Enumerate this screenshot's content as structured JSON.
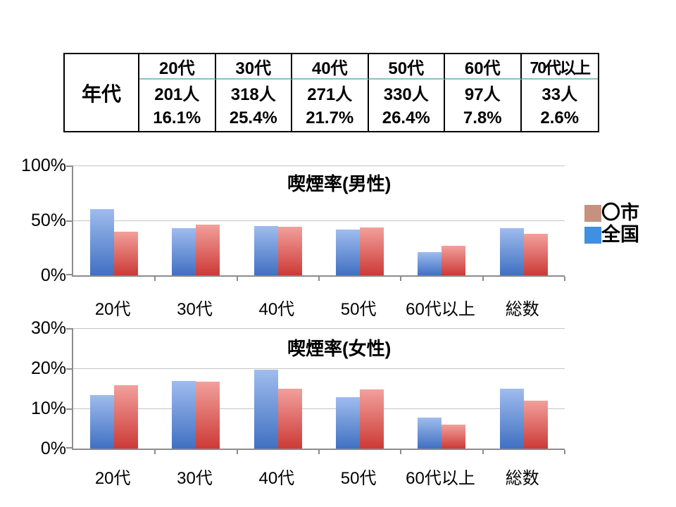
{
  "slide": {
    "table": {
      "row_header": "年代",
      "columns": [
        "20代",
        "30代",
        "40代",
        "50代",
        "60代",
        "70代以上"
      ],
      "counts": [
        "201人",
        "318人",
        "271人",
        "330人",
        "97人",
        "33人"
      ],
      "percents": [
        "16.1%",
        "25.4%",
        "21.7%",
        "26.4%",
        "7.8%",
        "2.6%"
      ],
      "header_underline_color": "#8fc0bd"
    },
    "legend": {
      "items": [
        {
          "label": "〇市",
          "color": "#c79180"
        },
        {
          "label": "全国",
          "color": "#3f90e2"
        }
      ]
    },
    "colors": {
      "grid": "#c5c5c5",
      "axis": "#8c8c8c",
      "national_bar_top": "#9fbcee",
      "national_bar_bottom": "#4070c2",
      "city_bar_top": "#f2a09c",
      "city_bar_bottom": "#cc3a36"
    }
  },
  "chart_data": [
    {
      "type": "bar",
      "title": "喫煙率(男性)",
      "categories": [
        "20代",
        "30代",
        "40代",
        "50代",
        "60代以上",
        "総数"
      ],
      "series": [
        {
          "name": "全国",
          "color_top": "#9fbcee",
          "color_bottom": "#4070c2",
          "values": [
            60,
            43,
            45,
            41.5,
            21,
            43
          ]
        },
        {
          "name": "〇市",
          "color_top": "#f2a09c",
          "color_bottom": "#cc3a36",
          "values": [
            40,
            46.5,
            44,
            43.5,
            27,
            38
          ]
        }
      ],
      "ylim": [
        0,
        100
      ],
      "yticks": [
        "100%",
        "50%",
        "0%"
      ],
      "ylabel": "",
      "xlabel": "",
      "grid": "horizontal",
      "legend_position": "right"
    },
    {
      "type": "bar",
      "title": "喫煙率(女性)",
      "categories": [
        "20代",
        "30代",
        "40代",
        "50代",
        "60代以上",
        "総数"
      ],
      "series": [
        {
          "name": "全国",
          "color_top": "#9fbcee",
          "color_bottom": "#4070c2",
          "values": [
            13.3,
            16.9,
            19.7,
            12.8,
            7.8,
            14.9
          ]
        },
        {
          "name": "〇市",
          "color_top": "#f2a09c",
          "color_bottom": "#cc3a36",
          "values": [
            15.8,
            16.7,
            15.0,
            14.7,
            6.0,
            11.9
          ]
        }
      ],
      "ylim": [
        0,
        30
      ],
      "yticks": [
        "30%",
        "20%",
        "10%",
        "0%"
      ],
      "ylabel": "",
      "xlabel": "",
      "grid": "horizontal",
      "legend_position": "none"
    }
  ]
}
